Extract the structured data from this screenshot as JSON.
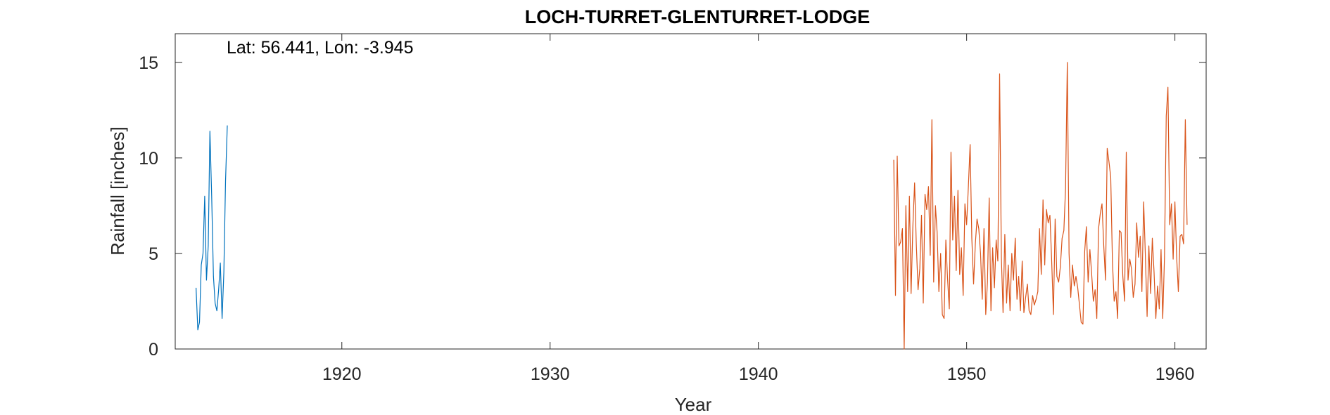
{
  "chart_data": {
    "type": "line",
    "title": "LOCH-TURRET-GLENTURRET-LODGE",
    "annotation": "Lat: 56.441, Lon: -3.945",
    "xlabel": "Year",
    "ylabel": "Rainfall [inches]",
    "xlim": [
      1912,
      1961.5
    ],
    "ylim": [
      0,
      16.5
    ],
    "xticks": [
      1920,
      1930,
      1940,
      1950,
      1960
    ],
    "yticks": [
      0,
      5,
      10,
      15
    ],
    "grid": false,
    "colors": {
      "series1": "#0072bd",
      "series2": "#d95319",
      "axes": "#262626"
    },
    "series": [
      {
        "start_year": 1913.0,
        "values": [
          3.2,
          1.0,
          1.4,
          4.4,
          5.0,
          8.0,
          3.6,
          5.4,
          11.4,
          8.0,
          3.8,
          2.4,
          2.0,
          3.1,
          4.5,
          1.6,
          4.0,
          8.8,
          11.7
        ]
      },
      {
        "start_year": 1946.5,
        "values": [
          9.9,
          2.8,
          10.1,
          5.4,
          5.6,
          6.3,
          0.0,
          7.5,
          3.0,
          8.0,
          2.9,
          6.4,
          8.7,
          5.5,
          3.1,
          4.2,
          7.0,
          2.4,
          8.1,
          7.3,
          8.5,
          4.9,
          12.0,
          3.5,
          7.5,
          6.1,
          3.0,
          5.0,
          1.8,
          1.6,
          5.7,
          3.7,
          2.1,
          10.3,
          5.7,
          8.0,
          4.1,
          8.3,
          3.9,
          5.3,
          2.8,
          7.6,
          6.5,
          8.5,
          10.7,
          5.8,
          3.4,
          5.5,
          6.8,
          6.3,
          5.0,
          2.6,
          6.3,
          1.8,
          3.5,
          7.9,
          2.0,
          5.3,
          3.2,
          5.7,
          4.6,
          14.4,
          4.8,
          1.9,
          6.0,
          2.4,
          4.4,
          2.0,
          5.0,
          3.6,
          5.8,
          2.6,
          3.8,
          2.0,
          4.6,
          1.9,
          2.7,
          3.4,
          2.0,
          1.8,
          2.8,
          2.3,
          2.6,
          3.0,
          6.3,
          3.9,
          7.8,
          4.4,
          7.3,
          6.6,
          7.0,
          4.6,
          1.8,
          6.8,
          3.8,
          3.5,
          4.3,
          5.8,
          6.2,
          8.4,
          15.0,
          5.0,
          2.7,
          4.4,
          3.3,
          3.8,
          3.2,
          2.3,
          1.4,
          1.3,
          5.1,
          6.4,
          3.5,
          5.2,
          4.0,
          2.5,
          3.1,
          1.6,
          6.3,
          7.1,
          7.6,
          5.4,
          3.6,
          10.5,
          9.8,
          9.0,
          4.6,
          2.5,
          3.0,
          1.6,
          6.2,
          6.1,
          3.8,
          2.5,
          10.3,
          3.6,
          4.7,
          4.2,
          2.7,
          3.4,
          6.6,
          4.8,
          5.9,
          3.0,
          7.7,
          4.8,
          1.7,
          5.4,
          2.9,
          5.8,
          4.0,
          1.6,
          3.3,
          2.1,
          5.2,
          1.6,
          4.8,
          12.2,
          13.7,
          6.5,
          7.6,
          4.7,
          7.7,
          4.8,
          3.0,
          5.9,
          6.0,
          5.5,
          12.0,
          6.5
        ]
      }
    ]
  }
}
